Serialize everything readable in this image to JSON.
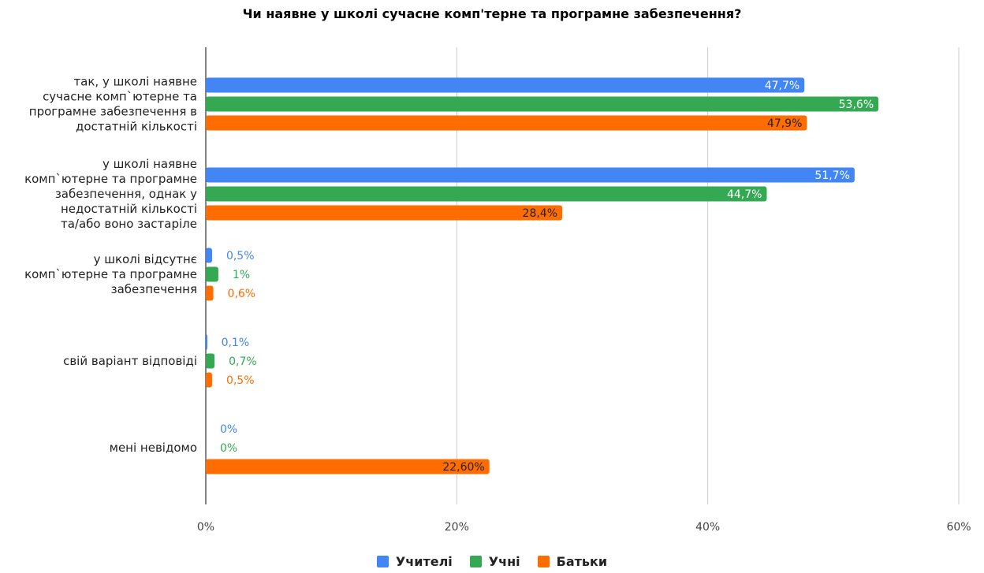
{
  "chart_data": {
    "type": "bar",
    "orientation": "horizontal",
    "title": "Чи наявне у школі сучасне комп'терне та програмне забезпечення?",
    "categories": [
      [
        "так, у школі наявне",
        "сучасне комп`ютерне та",
        "програмне забезпечення в",
        "достатній кількості"
      ],
      [
        "у школі наявне",
        "комп`ютерне та програмне",
        "забезпечення, однак у",
        "недостатній кількості",
        "та/або воно застаріле"
      ],
      [
        "у школі відсутнє",
        "комп`ютерне та програмне",
        "забезпечення"
      ],
      [
        "свій варіант відповіді"
      ],
      [
        "мені невідомо"
      ]
    ],
    "series": [
      {
        "name": "Учителі",
        "color": "#4285f4",
        "values": [
          47.7,
          51.7,
          0.5,
          0.1,
          0
        ],
        "labels": [
          "47,7%",
          "51,7%",
          "0,5%",
          "0,1%",
          "0%"
        ]
      },
      {
        "name": "Учні",
        "color": "#34a853",
        "values": [
          53.6,
          44.7,
          1,
          0.7,
          0
        ],
        "labels": [
          "53,6%",
          "44,7%",
          "1%",
          "0,7%",
          "0%"
        ]
      },
      {
        "name": "Батьки",
        "color": "#ff6d01",
        "values": [
          47.9,
          28.4,
          0.6,
          0.5,
          22.6
        ],
        "labels": [
          "47,9%",
          "28,4%",
          "0,6%",
          "0,5%",
          "22,60%"
        ]
      }
    ],
    "xlim": [
      0,
      60
    ],
    "xticks": [
      0,
      20,
      40,
      60
    ],
    "xtick_labels": [
      "0%",
      "20%",
      "40%",
      "60%"
    ],
    "grid": true,
    "legend_position": "bottom"
  }
}
